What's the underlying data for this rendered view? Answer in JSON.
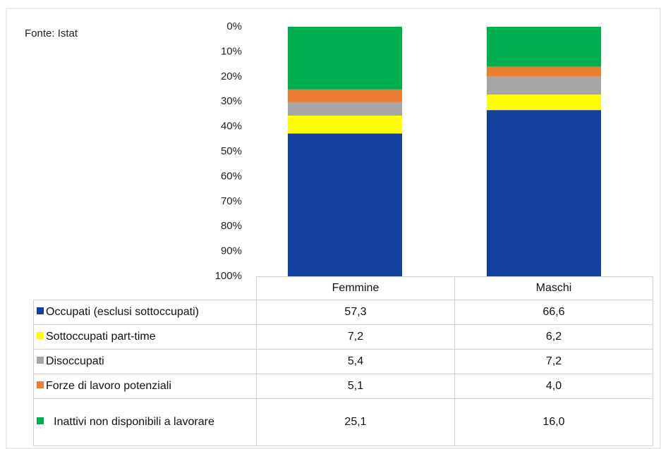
{
  "chart_data": {
    "type": "stacked_bar",
    "annotation": "Fonte: Istat",
    "categories": [
      "Femmine",
      "Maschi"
    ],
    "series": [
      {
        "name": "Occupati (esclusi sottoccupati)",
        "color": "#133f9e",
        "values": [
          57.3,
          66.6
        ],
        "value_labels": [
          "57,3",
          "66,6"
        ]
      },
      {
        "name": "Sottoccupati part-time",
        "color": "#ffff00",
        "values": [
          7.2,
          6.2
        ],
        "value_labels": [
          "7,2",
          "6,2"
        ]
      },
      {
        "name": "Disoccupati",
        "color": "#a6a6a6",
        "values": [
          5.4,
          7.2
        ],
        "value_labels": [
          "5,4",
          "7,2"
        ]
      },
      {
        "name": "Forze di lavoro potenziali",
        "color": "#ed7d31",
        "values": [
          5.1,
          4.0
        ],
        "value_labels": [
          "5,1",
          "4,0"
        ]
      },
      {
        "name": "Inattivi non disponibili a lavorare",
        "color": "#00b050",
        "values": [
          25.1,
          16.0
        ],
        "value_labels": [
          "25,1",
          "16,0"
        ]
      }
    ],
    "ylim": [
      0,
      100
    ],
    "y_reversed": true,
    "yticks": [
      {
        "value": 0,
        "label": "0%"
      },
      {
        "value": 10,
        "label": "10%"
      },
      {
        "value": 20,
        "label": "20%"
      },
      {
        "value": 30,
        "label": "30%"
      },
      {
        "value": 40,
        "label": "40%"
      },
      {
        "value": 50,
        "label": "50%"
      },
      {
        "value": 60,
        "label": "60%"
      },
      {
        "value": 70,
        "label": "70%"
      },
      {
        "value": 80,
        "label": "80%"
      },
      {
        "value": 90,
        "label": "90%"
      },
      {
        "value": 100,
        "label": "100%"
      }
    ],
    "grid": false,
    "data_table": true
  }
}
